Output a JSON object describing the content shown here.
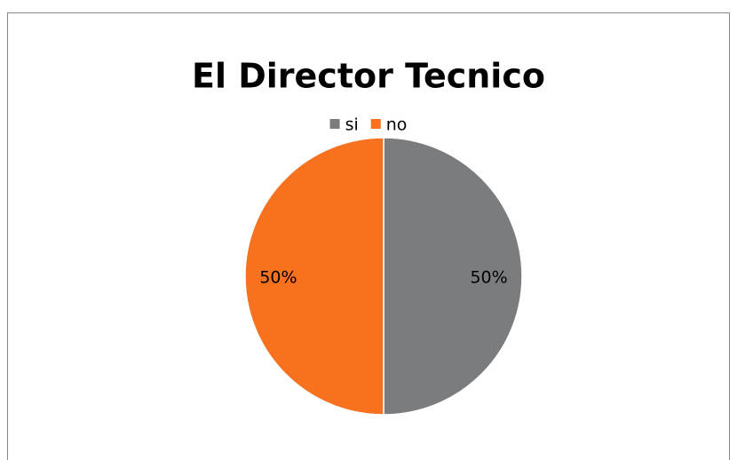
{
  "chart_data": {
    "type": "pie",
    "title": "El Director Tecnico",
    "categories": [
      "si",
      "no"
    ],
    "values": [
      50,
      50
    ],
    "value_labels": [
      "50%",
      "50%"
    ],
    "colors": [
      "#7b7c7e",
      "#f7711f"
    ],
    "legend": "top"
  }
}
